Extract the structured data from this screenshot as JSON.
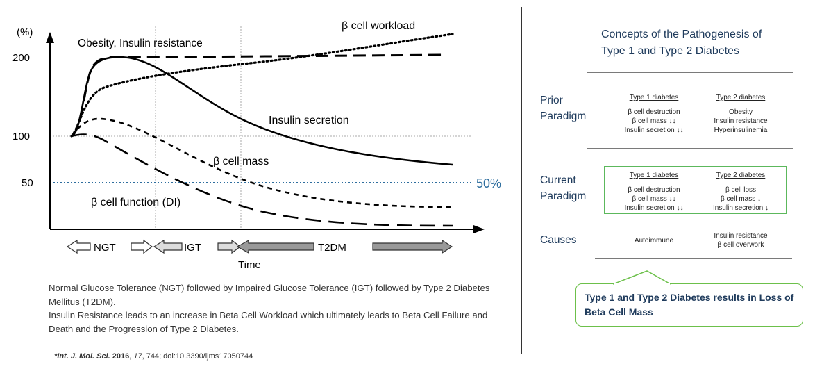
{
  "chart_data": {
    "type": "line",
    "y_unit_label": "(%)",
    "y_ticks": [
      "200",
      "100",
      "50"
    ],
    "reference_line_label": "50%",
    "x_label": "Time",
    "stages": [
      "NGT",
      "IGT",
      "T2DM"
    ],
    "series": [
      {
        "name": "Obesity, Insulin resistance",
        "style": "dashed"
      },
      {
        "name": "β cell workload",
        "style": "dotted"
      },
      {
        "name": "Insulin secretion",
        "style": "solid"
      },
      {
        "name": "β cell mass",
        "style": "short-dashed"
      },
      {
        "name": "β cell function (DI)",
        "style": "long-dashed"
      }
    ]
  },
  "caption": {
    "line1": "Normal Glucose Tolerance (NGT) followed by Impaired Glucose Tolerance (IGT) followed by Type 2 Diabetes Mellitus (T2DM).",
    "line2": "Insulin Resistance leads to an increase in Beta Cell Workload which ultimately leads to Beta Cell Failure and Death and the Progression of Type 2 Diabetes."
  },
  "citation": {
    "journal": "*Int. J. Mol. Sci.",
    "year": "2016",
    "volume": "17",
    "rest": ", 744; doi:10.3390/ijms17050744"
  },
  "right_panel": {
    "title_line1": "Concepts of the Pathogenesis of",
    "title_line2": "Type 1 and Type 2 Diabetes",
    "prior": {
      "label_line1": "Prior",
      "label_line2": "Paradigm",
      "type1_head": "Type 1 diabetes",
      "type1_lines": [
        "β cell destruction",
        "β cell mass",
        "Insulin secretion"
      ],
      "type1_arrows": [
        "",
        "↓↓",
        "↓↓"
      ],
      "type2_head": "Type 2 diabetes",
      "type2_lines": [
        "Obesity",
        "Insulin resistance",
        "Hyperinsulinemia"
      ]
    },
    "current": {
      "label_line1": "Current",
      "label_line2": "Paradigm",
      "type1_head": "Type 1 diabetes",
      "type1_lines": [
        "β cell destruction",
        "β cell mass",
        "Insulin secretion"
      ],
      "type1_arrows": [
        "",
        "↓↓",
        "↓↓"
      ],
      "type2_head": "Type 2 diabetes",
      "type2_lines": [
        "β cell loss",
        "β cell mass",
        "Insulin secretion"
      ],
      "type2_arrows": [
        "",
        "↓",
        "↓"
      ]
    },
    "causes": {
      "label": "Causes",
      "type1": "Autoimmune",
      "type2_line1": "Insulin resistance",
      "type2_line2": "β cell overwork"
    },
    "callout": "Type 1 and Type 2 Diabetes results in Loss of Beta Cell Mass"
  }
}
